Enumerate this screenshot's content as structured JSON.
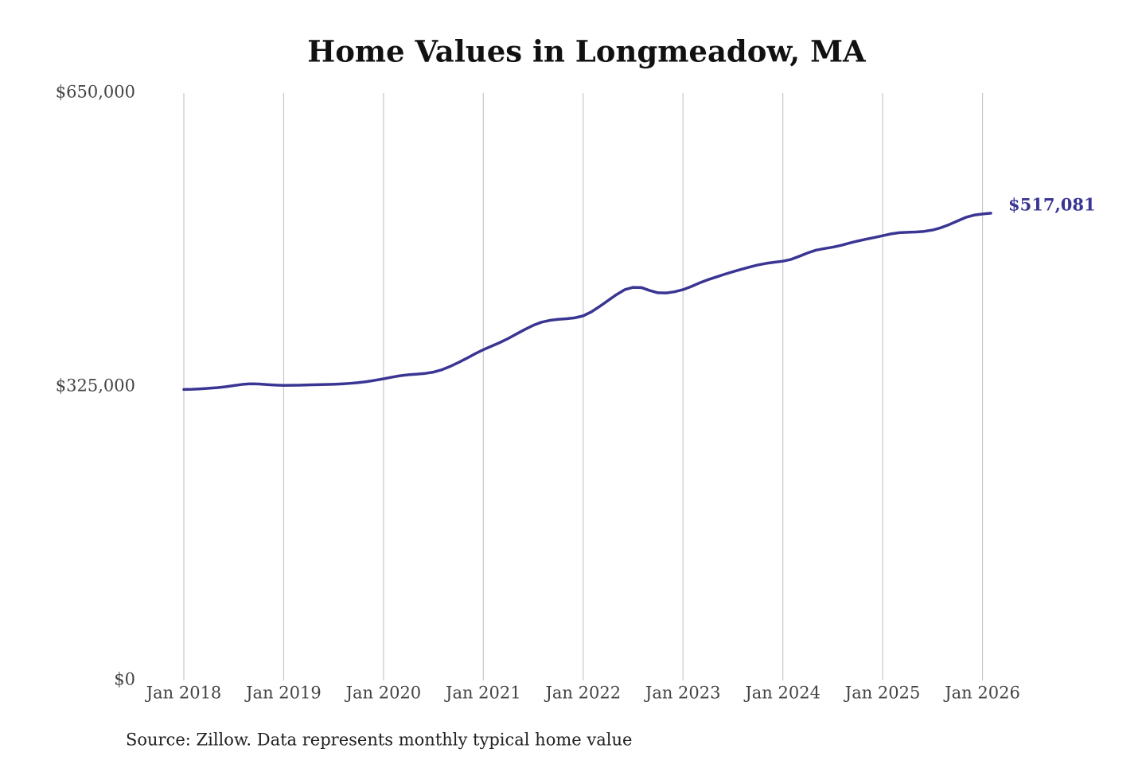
{
  "chart_data": {
    "type": "line",
    "title": "Home Values in Longmeadow, MA",
    "source": "Source: Zillow. Data represents monthly typical home value",
    "x": [
      "2018-01",
      "2018-02",
      "2018-03",
      "2018-04",
      "2018-05",
      "2018-06",
      "2018-07",
      "2018-08",
      "2018-09",
      "2018-10",
      "2018-11",
      "2018-12",
      "2019-01",
      "2019-02",
      "2019-03",
      "2019-04",
      "2019-05",
      "2019-06",
      "2019-07",
      "2019-08",
      "2019-09",
      "2019-10",
      "2019-11",
      "2019-12",
      "2020-01",
      "2020-02",
      "2020-03",
      "2020-04",
      "2020-05",
      "2020-06",
      "2020-07",
      "2020-08",
      "2020-09",
      "2020-10",
      "2020-11",
      "2020-12",
      "2021-01",
      "2021-02",
      "2021-03",
      "2021-04",
      "2021-05",
      "2021-06",
      "2021-07",
      "2021-08",
      "2021-09",
      "2021-10",
      "2021-11",
      "2021-12",
      "2022-01",
      "2022-02",
      "2022-03",
      "2022-04",
      "2022-05",
      "2022-06",
      "2022-07",
      "2022-08",
      "2022-09",
      "2022-10",
      "2022-11",
      "2022-12",
      "2023-01",
      "2023-02",
      "2023-03",
      "2023-04",
      "2023-05",
      "2023-06",
      "2023-07",
      "2023-08",
      "2023-09",
      "2023-10",
      "2023-11",
      "2023-12",
      "2024-01",
      "2024-02",
      "2024-03",
      "2024-04",
      "2024-05",
      "2024-06",
      "2024-07",
      "2024-08",
      "2024-09",
      "2024-10",
      "2024-11",
      "2024-12",
      "2025-01",
      "2025-02",
      "2025-03",
      "2025-04",
      "2025-05",
      "2025-06",
      "2025-07",
      "2025-08",
      "2025-09",
      "2025-10",
      "2025-11",
      "2025-12",
      "2026-01",
      "2026-02"
    ],
    "series": [
      {
        "name": "Home value",
        "color": "#3a3593",
        "values": [
          322000,
          322200,
          322700,
          323300,
          324000,
          325000,
          326300,
          327600,
          328300,
          328100,
          327400,
          326900,
          326500,
          326600,
          326800,
          327100,
          327300,
          327500,
          327800,
          328200,
          328800,
          329600,
          330700,
          332200,
          333800,
          335600,
          337200,
          338300,
          339000,
          339800,
          341200,
          343800,
          347500,
          351800,
          356500,
          361500,
          366000,
          370000,
          374000,
          378500,
          383500,
          388500,
          393000,
          396500,
          398500,
          399600,
          400300,
          401300,
          403500,
          408000,
          414000,
          420500,
          427000,
          432500,
          435000,
          434800,
          431500,
          429000,
          428800,
          430200,
          432500,
          436000,
          440000,
          443500,
          446500,
          449500,
          452300,
          455000,
          457500,
          459800,
          461600,
          462800,
          464000,
          466000,
          469500,
          473200,
          476200,
          478000,
          479500,
          481500,
          484000,
          486300,
          488300,
          490200,
          492200,
          494200,
          495500,
          496000,
          496300,
          497000,
          498500,
          501000,
          504500,
          508500,
          512500,
          515000,
          516200,
          517081
        ],
        "value_labels": [
          null,
          null,
          null,
          null,
          null,
          null,
          null,
          null,
          null,
          null,
          null,
          null,
          null,
          null,
          null,
          null,
          null,
          null,
          null,
          null,
          null,
          null,
          null,
          null,
          null,
          null,
          null,
          null,
          null,
          null,
          null,
          null,
          null,
          null,
          null,
          null,
          null,
          null,
          null,
          null,
          null,
          null,
          null,
          null,
          null,
          null,
          null,
          null,
          null,
          null,
          null,
          null,
          null,
          null,
          null,
          null,
          null,
          null,
          null,
          null,
          null,
          null,
          null,
          null,
          null,
          null,
          null,
          null,
          null,
          null,
          null,
          null,
          null,
          null,
          null,
          null,
          null,
          null,
          null,
          null,
          null,
          null,
          null,
          null,
          null,
          null,
          null,
          null,
          null,
          null,
          null,
          null,
          null,
          null,
          null,
          null,
          null,
          "$517,081"
        ]
      }
    ],
    "xlim": [
      "2018-01",
      "2026-02"
    ],
    "xticks": [
      {
        "value": "2018-01",
        "label": "Jan 2018"
      },
      {
        "value": "2019-01",
        "label": "Jan 2019"
      },
      {
        "value": "2020-01",
        "label": "Jan 2020"
      },
      {
        "value": "2021-01",
        "label": "Jan 2021"
      },
      {
        "value": "2022-01",
        "label": "Jan 2022"
      },
      {
        "value": "2023-01",
        "label": "Jan 2023"
      },
      {
        "value": "2024-01",
        "label": "Jan 2024"
      },
      {
        "value": "2025-01",
        "label": "Jan 2025"
      },
      {
        "value": "2026-01",
        "label": "Jan 2026"
      }
    ],
    "ylim": [
      0,
      650000
    ],
    "yticks": [
      {
        "value": 0,
        "label": "$0"
      },
      {
        "value": 325000,
        "label": "$325,000"
      },
      {
        "value": 650000,
        "label": "$650,000"
      }
    ],
    "grid": "x"
  }
}
